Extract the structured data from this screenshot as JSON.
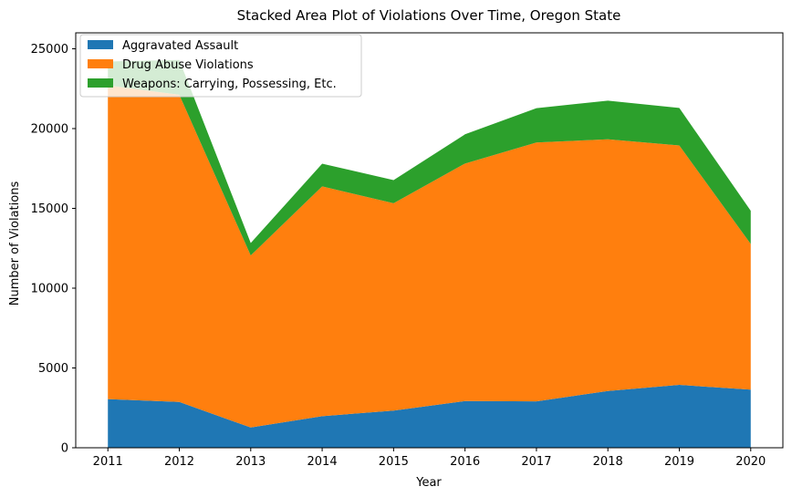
{
  "chart_data": {
    "type": "area",
    "stacked": true,
    "title": "Stacked Area Plot of Violations Over Time, Oregon State",
    "xlabel": "Year",
    "ylabel": "Number of Violations",
    "x": [
      2011,
      2012,
      2013,
      2014,
      2015,
      2016,
      2017,
      2018,
      2019,
      2020
    ],
    "x_tick_labels": [
      "2011",
      "2012",
      "2013",
      "2014",
      "2015",
      "2016",
      "2017",
      "2018",
      "2019",
      "2020"
    ],
    "y_ticks": [
      0,
      5000,
      10000,
      15000,
      20000,
      25000
    ],
    "y_tick_labels": [
      "0",
      "5000",
      "10000",
      "15000",
      "20000",
      "25000"
    ],
    "xlim": [
      2010.55,
      2020.45
    ],
    "ylim": [
      0,
      26000
    ],
    "grid": false,
    "legend_position": "top-left",
    "series": [
      {
        "name": "Aggravated Assault",
        "color": "#1f77b4",
        "values": [
          3050,
          2870,
          1270,
          1980,
          2330,
          2930,
          2910,
          3560,
          3940,
          3640
        ]
      },
      {
        "name": "Drug Abuse Violations",
        "color": "#ff7f0e",
        "values": [
          19650,
          19250,
          10780,
          14400,
          12990,
          14880,
          16220,
          15770,
          15000,
          9130
        ]
      },
      {
        "name": "Weapons: Carrying, Possessing, Etc.",
        "color": "#2ca02c",
        "values": [
          1500,
          2180,
          780,
          1420,
          1450,
          1830,
          2150,
          2420,
          2350,
          2080
        ]
      }
    ]
  }
}
